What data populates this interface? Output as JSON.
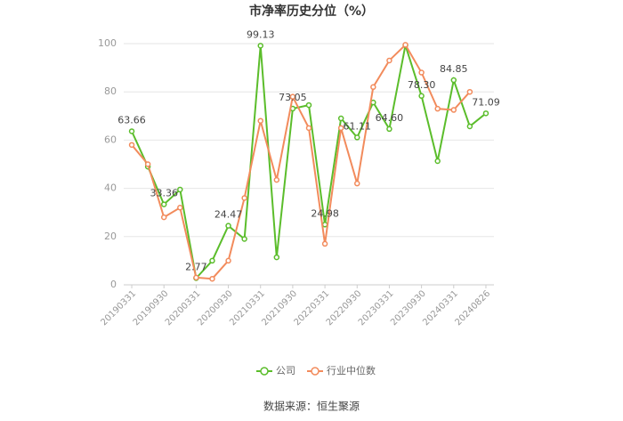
{
  "chart_data": {
    "type": "line",
    "title": "市净率历史分位（%）",
    "source": "数据来源：恒生聚源",
    "categories": [
      "20190331",
      null,
      "20190930",
      null,
      "20200331",
      null,
      "20200930",
      null,
      "20210331",
      null,
      "20210930",
      null,
      "20220331",
      null,
      "20220930",
      null,
      "20230331",
      null,
      "20230930",
      null,
      "20240331",
      null,
      "20240826"
    ],
    "series": [
      {
        "name": "公司",
        "color": "#5bbd2b",
        "values": [
          63.66,
          49,
          33.36,
          39.5,
          2.77,
          10,
          24.47,
          19,
          99.13,
          11.4,
          73.05,
          74.5,
          24.98,
          69,
          61.11,
          75.6,
          64.6,
          99.3,
          78.3,
          51.3,
          84.85,
          65.7,
          71.09
        ],
        "value_labels": [
          "63.66",
          null,
          "33.36",
          null,
          "2.77",
          null,
          "24.47",
          null,
          "99.13",
          null,
          "73.05",
          null,
          "24.98",
          null,
          "61.11",
          null,
          "64.60",
          null,
          "78.30",
          null,
          "84.85",
          null,
          "71.09"
        ]
      },
      {
        "name": "行业中位数",
        "color": "#f28b5c",
        "values": [
          58,
          50,
          28,
          32,
          3,
          2.5,
          10,
          36,
          68,
          43.5,
          78,
          65,
          17,
          65,
          42,
          82,
          93,
          99.5,
          88,
          73,
          72.5,
          80,
          null
        ]
      }
    ],
    "ylim": [
      0,
      100
    ],
    "yticks": [
      0,
      20,
      40,
      60,
      80,
      100
    ],
    "grid": true,
    "legend": "bottom"
  }
}
